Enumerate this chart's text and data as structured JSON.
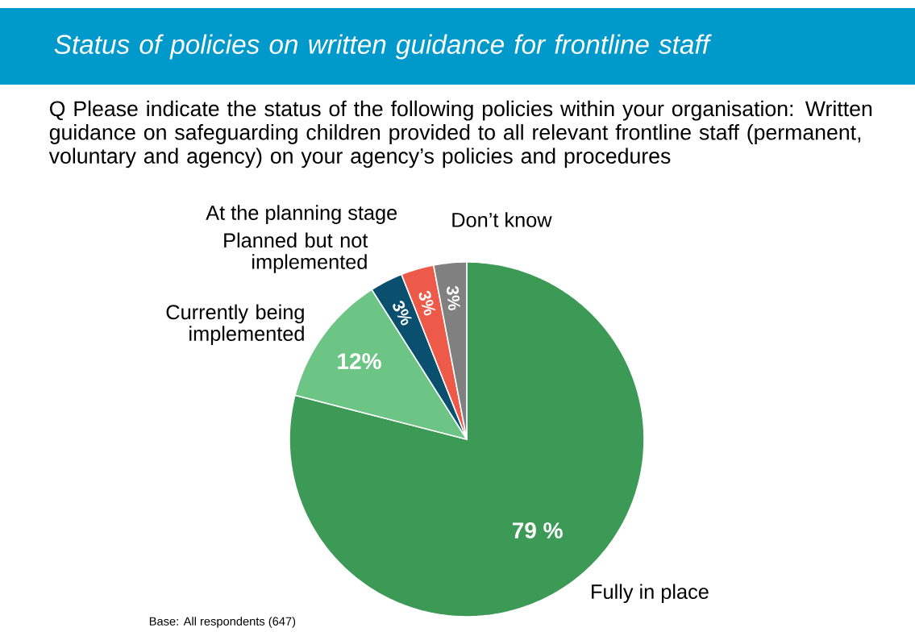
{
  "chart_data": {
    "type": "pie",
    "title": "Status of policies on written guidance for frontline staff",
    "subtitle": "Q Please indicate the status of the following policies within your organisation: Written guidance on safeguarding children provided to all relevant frontline staff (permanent, voluntary and agency) on your agency’s policies and procedures",
    "categories": [
      "Fully in place",
      "Currently being implemented",
      "Planned but not implemented",
      "At the planning stage",
      "Don’t know"
    ],
    "values": [
      79,
      12,
      3,
      3,
      3
    ],
    "value_labels": [
      "79 %",
      "12%",
      "3%",
      "3%",
      "3%"
    ],
    "colors": [
      "#3d9a56",
      "#6cc485",
      "#0a4f6e",
      "#ee5a4a",
      "#808080"
    ],
    "annotations": [
      "Base: All respondents (647)"
    ]
  }
}
